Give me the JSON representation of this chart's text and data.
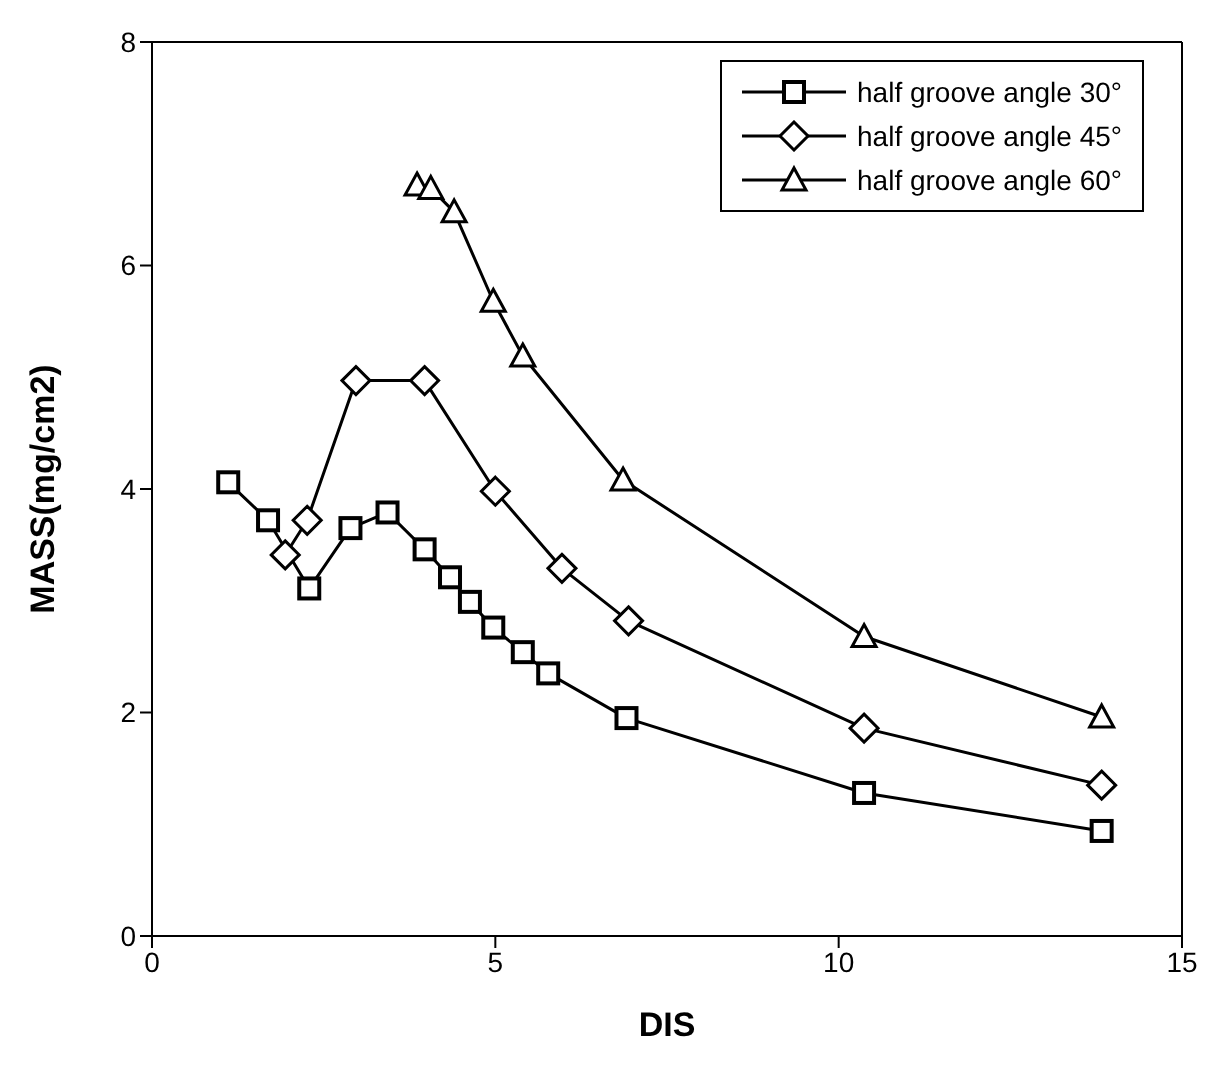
{
  "chart_data": {
    "type": "line",
    "xlabel": "DIS",
    "ylabel": "MASS(mg/cm2)",
    "xlim": [
      0,
      15
    ],
    "xticks": [
      0,
      5,
      10,
      15
    ],
    "ylim": [
      0,
      8
    ],
    "yticks": [
      0,
      2,
      4,
      6,
      8
    ],
    "grid": false,
    "legend": "top right",
    "series": [
      {
        "name": "half groove angle 30°",
        "color": "#000000",
        "marker": "square",
        "x": [
          1.11,
          1.69,
          2.29,
          2.89,
          3.43,
          3.97,
          4.34,
          4.63,
          4.97,
          5.4,
          5.77,
          6.91,
          10.37,
          13.83
        ],
        "values": [
          4.06,
          3.72,
          3.11,
          3.65,
          3.79,
          3.46,
          3.21,
          2.99,
          2.76,
          2.54,
          2.35,
          1.95,
          1.28,
          0.94
        ]
      },
      {
        "name": "half groove angle 45°",
        "color": "#000000",
        "marker": "diamond",
        "x": [
          1.94,
          2.26,
          2.97,
          3.97,
          5.0,
          5.97,
          6.94,
          10.37,
          13.83
        ],
        "values": [
          3.41,
          3.72,
          4.97,
          4.97,
          3.98,
          3.29,
          2.82,
          1.86,
          1.35
        ]
      },
      {
        "name": "half groove angle 60°",
        "color": "#000000",
        "marker": "triangle",
        "x": [
          3.86,
          4.06,
          4.4,
          4.97,
          5.4,
          6.86,
          10.37,
          13.83
        ],
        "values": [
          6.72,
          6.69,
          6.48,
          5.68,
          5.19,
          4.08,
          2.68,
          1.96
        ]
      }
    ]
  }
}
